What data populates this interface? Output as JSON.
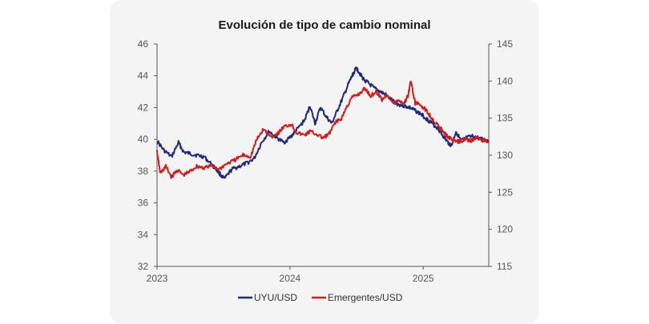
{
  "chart_data": {
    "type": "line",
    "title": "Evolución de tipo de cambio nominal",
    "x_tick_labels": [
      "2023",
      "2024",
      "2025"
    ],
    "x_range": [
      "2023-01-01",
      "2025-06-30"
    ],
    "y_left": {
      "range": [
        32,
        46
      ],
      "ticks": [
        "46",
        "44",
        "42",
        "40",
        "38",
        "36",
        "34",
        "32"
      ]
    },
    "y_right": {
      "range": [
        115,
        145
      ],
      "ticks": [
        "145",
        "140",
        "135",
        "130",
        "125",
        "120",
        "115"
      ]
    },
    "grid": false,
    "legend_position": "bottom",
    "series": [
      {
        "name": "UYU/USD",
        "axis": "left",
        "color": "#1f2a7a",
        "points": [
          [
            "2023-01-01",
            39.9
          ],
          [
            "2023-01-20",
            39.3
          ],
          [
            "2023-02-10",
            38.9
          ],
          [
            "2023-03-01",
            39.8
          ],
          [
            "2023-03-15",
            39.2
          ],
          [
            "2023-04-01",
            39.1
          ],
          [
            "2023-04-20",
            39.0
          ],
          [
            "2023-05-10",
            38.9
          ],
          [
            "2023-06-01",
            38.4
          ],
          [
            "2023-06-20",
            37.9
          ],
          [
            "2023-07-05",
            37.5
          ],
          [
            "2023-07-25",
            38.1
          ],
          [
            "2023-08-15",
            38.3
          ],
          [
            "2023-09-05",
            38.5
          ],
          [
            "2023-09-25",
            38.8
          ],
          [
            "2023-10-15",
            39.8
          ],
          [
            "2023-11-05",
            40.5
          ],
          [
            "2023-11-25",
            40.1
          ],
          [
            "2023-12-15",
            39.8
          ],
          [
            "2024-01-05",
            40.2
          ],
          [
            "2024-01-20",
            40.6
          ],
          [
            "2024-02-10",
            41.2
          ],
          [
            "2024-02-25",
            42.1
          ],
          [
            "2024-03-10",
            41.0
          ],
          [
            "2024-03-25",
            42.0
          ],
          [
            "2024-04-10",
            41.4
          ],
          [
            "2024-04-25",
            41.0
          ],
          [
            "2024-05-10",
            41.8
          ],
          [
            "2024-05-25",
            42.6
          ],
          [
            "2024-06-10",
            43.5
          ],
          [
            "2024-06-20",
            44.0
          ],
          [
            "2024-07-01",
            44.5
          ],
          [
            "2024-07-10",
            44.2
          ],
          [
            "2024-07-20",
            43.8
          ],
          [
            "2024-08-05",
            43.5
          ],
          [
            "2024-08-20",
            43.2
          ],
          [
            "2024-09-05",
            43.0
          ],
          [
            "2024-09-20",
            42.8
          ],
          [
            "2024-10-10",
            42.4
          ],
          [
            "2024-10-25",
            42.2
          ],
          [
            "2024-11-10",
            42.1
          ],
          [
            "2024-11-25",
            42.0
          ],
          [
            "2024-12-10",
            41.8
          ],
          [
            "2024-12-25",
            41.6
          ],
          [
            "2025-01-10",
            41.3
          ],
          [
            "2025-01-25",
            41.0
          ],
          [
            "2025-02-10",
            40.7
          ],
          [
            "2025-02-25",
            40.2
          ],
          [
            "2025-03-10",
            39.8
          ],
          [
            "2025-03-20",
            39.6
          ],
          [
            "2025-04-01",
            40.5
          ],
          [
            "2025-04-15",
            39.9
          ],
          [
            "2025-05-01",
            40.1
          ],
          [
            "2025-05-20",
            40.2
          ],
          [
            "2025-06-10",
            40.0
          ],
          [
            "2025-06-30",
            39.9
          ]
        ]
      },
      {
        "name": "Emergentes/USD",
        "axis": "right",
        "color": "#cc1f1f",
        "points": [
          [
            "2023-01-01",
            130.5
          ],
          [
            "2023-01-10",
            127.5
          ],
          [
            "2023-01-25",
            128.5
          ],
          [
            "2023-02-10",
            127.0
          ],
          [
            "2023-02-25",
            128.0
          ],
          [
            "2023-03-15",
            127.3
          ],
          [
            "2023-04-01",
            127.8
          ],
          [
            "2023-04-20",
            128.5
          ],
          [
            "2023-05-10",
            128.3
          ],
          [
            "2023-06-01",
            128.6
          ],
          [
            "2023-06-20",
            128.1
          ],
          [
            "2023-07-10",
            128.8
          ],
          [
            "2023-08-01",
            129.3
          ],
          [
            "2023-08-25",
            130.0
          ],
          [
            "2023-09-15",
            129.8
          ],
          [
            "2023-10-01",
            132.0
          ],
          [
            "2023-10-20",
            133.5
          ],
          [
            "2023-11-10",
            132.5
          ],
          [
            "2023-11-30",
            133.0
          ],
          [
            "2023-12-15",
            133.8
          ],
          [
            "2024-01-05",
            134.2
          ],
          [
            "2024-01-20",
            133.0
          ],
          [
            "2024-02-10",
            132.7
          ],
          [
            "2024-02-25",
            133.2
          ],
          [
            "2024-03-15",
            132.8
          ],
          [
            "2024-04-01",
            132.3
          ],
          [
            "2024-04-20",
            133.0
          ],
          [
            "2024-05-05",
            134.5
          ],
          [
            "2024-05-20",
            134.8
          ],
          [
            "2024-06-05",
            136.5
          ],
          [
            "2024-06-20",
            137.8
          ],
          [
            "2024-07-10",
            138.3
          ],
          [
            "2024-07-25",
            139.0
          ],
          [
            "2024-08-10",
            138.0
          ],
          [
            "2024-08-25",
            138.6
          ],
          [
            "2024-09-10",
            137.5
          ],
          [
            "2024-09-25",
            138.2
          ],
          [
            "2024-10-10",
            137.0
          ],
          [
            "2024-10-25",
            137.4
          ],
          [
            "2024-11-10",
            137.0
          ],
          [
            "2024-11-20",
            138.0
          ],
          [
            "2024-11-28",
            140.0
          ],
          [
            "2024-12-10",
            137.0
          ],
          [
            "2024-12-25",
            136.8
          ],
          [
            "2025-01-10",
            136.0
          ],
          [
            "2025-01-25",
            135.0
          ],
          [
            "2025-02-10",
            134.0
          ],
          [
            "2025-02-25",
            133.2
          ],
          [
            "2025-03-10",
            132.5
          ],
          [
            "2025-03-25",
            132.0
          ],
          [
            "2025-04-10",
            131.8
          ],
          [
            "2025-04-25",
            132.2
          ],
          [
            "2025-05-10",
            131.9
          ],
          [
            "2025-05-25",
            132.3
          ],
          [
            "2025-06-15",
            132.0
          ],
          [
            "2025-06-30",
            131.9
          ]
        ]
      }
    ]
  }
}
